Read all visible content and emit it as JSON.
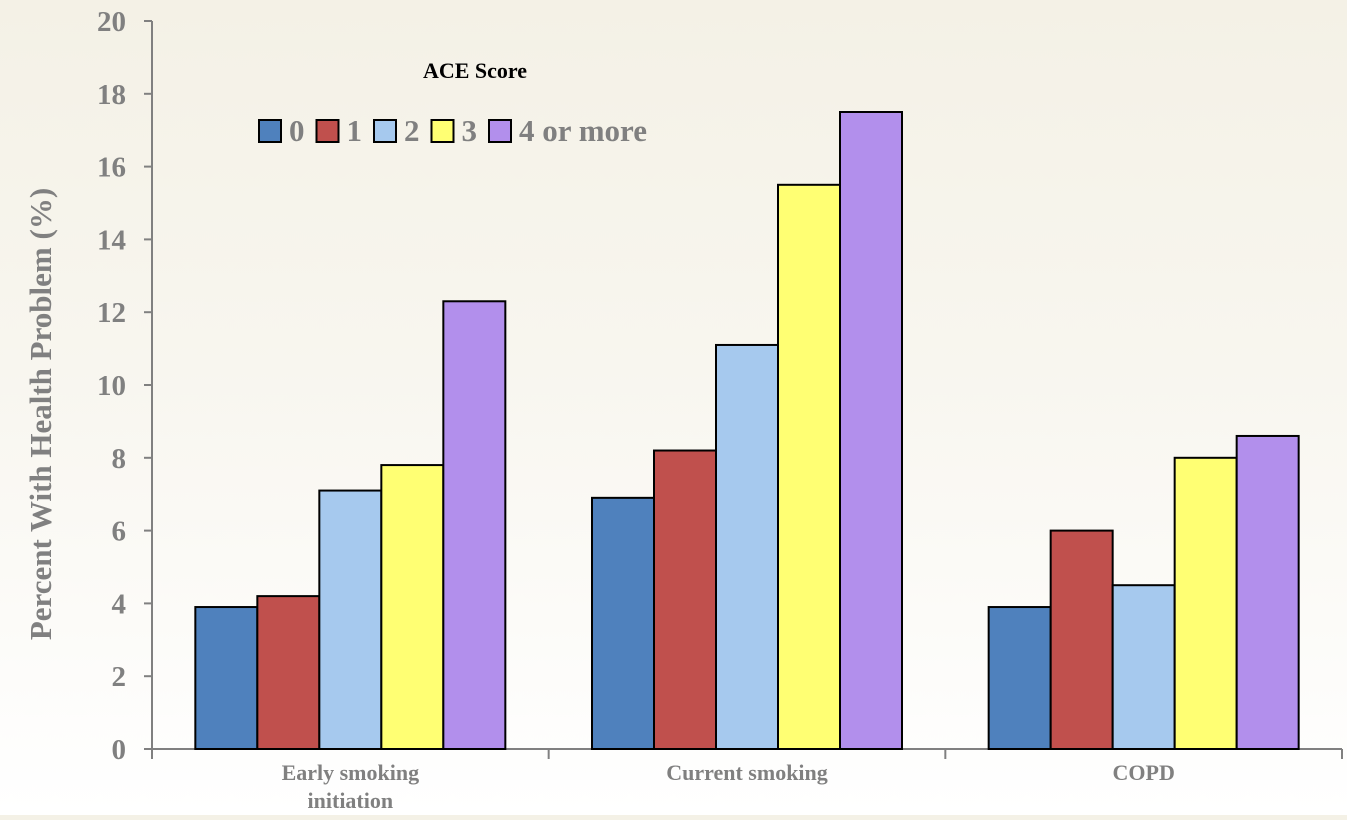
{
  "chart_data": {
    "type": "bar",
    "title": "",
    "ylabel": "Percent With Health Problem (%)",
    "xlabel": "",
    "ylim": [
      0,
      20
    ],
    "yticks": [
      0,
      2,
      4,
      6,
      8,
      10,
      12,
      14,
      16,
      18,
      20
    ],
    "categories": [
      [
        "Early smoking",
        "initiation"
      ],
      [
        "Current smoking"
      ],
      [
        "COPD"
      ]
    ],
    "legend": {
      "title": "ACE Score",
      "placement": "top-left"
    },
    "grid": false,
    "series": [
      {
        "name": "0",
        "color": "#4f81bd",
        "values": [
          3.9,
          6.9,
          3.9
        ]
      },
      {
        "name": "1",
        "color": "#c0504d",
        "values": [
          4.2,
          8.2,
          6.0
        ]
      },
      {
        "name": "2",
        "color": "#a6c9ee",
        "values": [
          7.1,
          11.1,
          4.5
        ]
      },
      {
        "name": "3",
        "color": "#ffff73",
        "values": [
          7.8,
          15.5,
          8.0
        ]
      },
      {
        "name": "4 or more",
        "color": "#b28fec",
        "values": [
          12.3,
          17.5,
          8.6
        ]
      }
    ],
    "colors": {
      "axis": "#808080",
      "tick_label": "#808080",
      "category_label": "#808080",
      "legend_title": "#000000",
      "legend_label": "#808080",
      "bar_stroke": "#000000"
    }
  }
}
